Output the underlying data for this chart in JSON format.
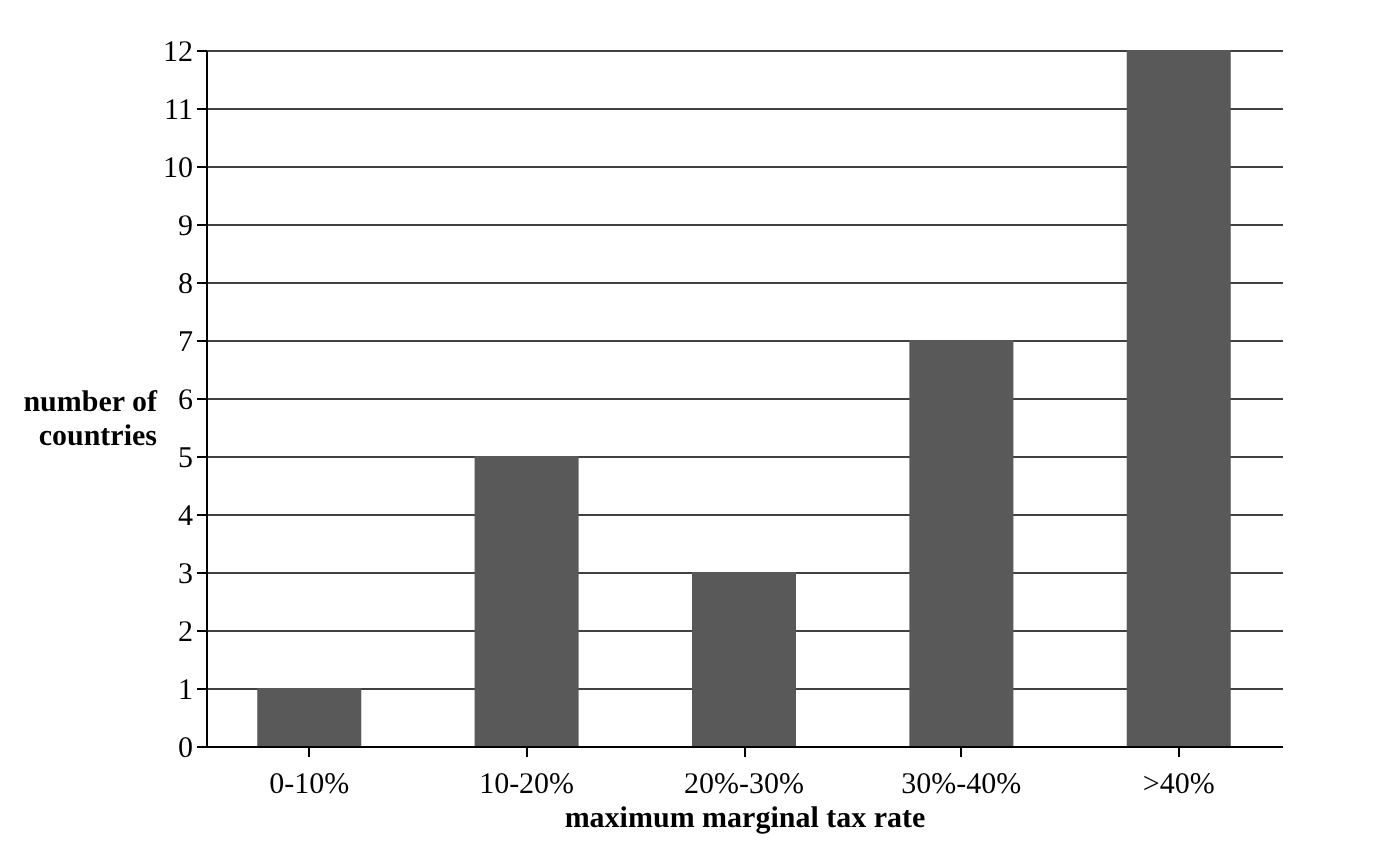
{
  "chart_data": {
    "type": "bar",
    "categories": [
      "0-10%",
      "10-20%",
      "20%-30%",
      "30%-40%",
      ">40%"
    ],
    "values": [
      1,
      5,
      3,
      7,
      12
    ],
    "color": "#595959",
    "xlabel": "maximum marginal tax rate",
    "ylabel": "number of countries",
    "ylim": [
      0,
      12
    ],
    "yticks": [
      0,
      1,
      2,
      3,
      4,
      5,
      6,
      7,
      8,
      9,
      10,
      11,
      12
    ],
    "grid": "y"
  }
}
